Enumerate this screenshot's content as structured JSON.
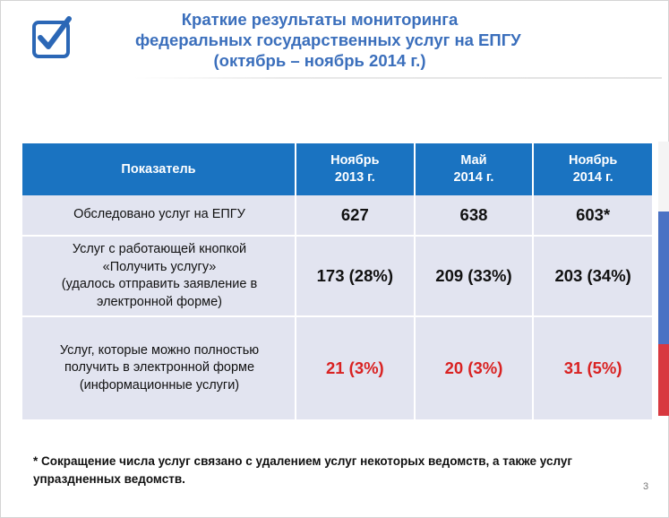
{
  "slide": {
    "title_lines": [
      "Краткие результаты мониторинга",
      "федеральных государственных услуг на ЕПГУ",
      "(октябрь – ноябрь 2014 г.)"
    ],
    "page_number": "3"
  },
  "table": {
    "header": {
      "indicator": "Показатель",
      "col1": [
        "Ноябрь",
        "2013 г."
      ],
      "col2": [
        "Май",
        "2014 г."
      ],
      "col3": [
        "Ноябрь",
        "2014 г."
      ]
    },
    "rows": [
      {
        "label_lines": [
          "Обследовано услуг на ЕПГУ"
        ],
        "values": [
          "627",
          "638",
          "603*"
        ]
      },
      {
        "label_lines": [
          "Услуг с работающей кнопкой",
          "«Получить услугу»",
          "(удалось отправить заявление в",
          "электронной форме)"
        ],
        "values": [
          "173 (28%)",
          "209 (33%)",
          "203 (34%)"
        ]
      },
      {
        "label_lines": [
          "Услуг, которые можно полностью",
          "получить в электронной форме",
          "(информационные услуги)"
        ],
        "values": [
          "21 (3%)",
          "20 (3%)",
          "31 (5%)"
        ]
      }
    ]
  },
  "footnote_lines": [
    "* Сокращение числа услуг связано с удалением услуг некоторых ведомств, а также услуг",
    "упраздненных ведомств."
  ],
  "colors": {
    "title": "#3b6fbc",
    "table_header": "#1a73c1",
    "table_cell": "#e2e4f0",
    "highlight_value": "#d92222"
  },
  "icons": [
    "checkbox-check-icon"
  ]
}
